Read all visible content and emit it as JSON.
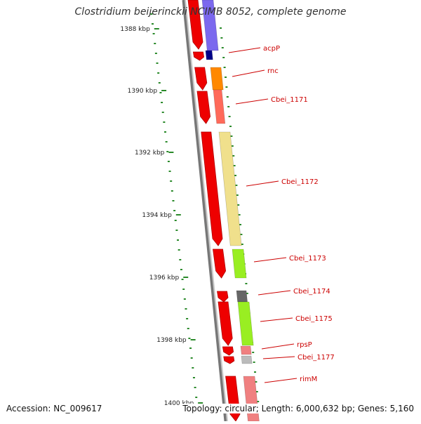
{
  "title": "Clostridium beijerinckii NCIMB 8052, complete genome",
  "footer": {
    "accession": "Accession: NC_009617",
    "summary": "Topology: circular; Length: 6,000,632 bp; Genes: 5,160"
  },
  "colors": {
    "backbone": "#8c8c8c",
    "tick": "#2a8a2a",
    "label": "#cc0000",
    "cds": "#ee0000"
  },
  "scale_labels": [
    "1388 kbp",
    "1390 kbp",
    "1392 kbp",
    "1394 kbp",
    "1396 kbp",
    "1398 kbp",
    "1400 kbp"
  ],
  "genes": [
    {
      "name": "acpP",
      "color": "#000088"
    },
    {
      "name": "rnc",
      "color": "#ff8800"
    },
    {
      "name": "Cbei_1171",
      "color": "#ff6a5a"
    },
    {
      "name": "Cbei_1172",
      "color": "#f0e08c"
    },
    {
      "name": "Cbei_1173",
      "color": "#99ee22"
    },
    {
      "name": "Cbei_1174",
      "color": "#666666"
    },
    {
      "name": "Cbei_1175",
      "color": "#99ee22"
    },
    {
      "name": "rpsP",
      "color": "#f08080"
    },
    {
      "name": "Cbei_1177",
      "color": "#bbbbbb"
    },
    {
      "name": "rimM",
      "color": "#f08080"
    }
  ]
}
